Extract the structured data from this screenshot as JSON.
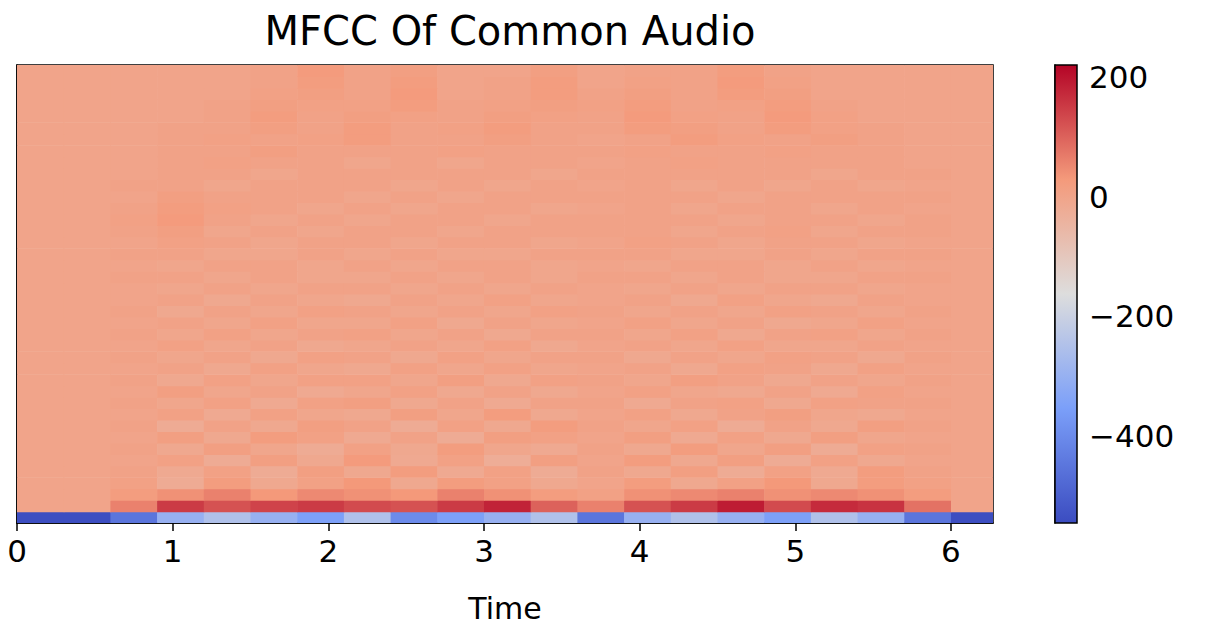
{
  "chart_data": {
    "type": "heatmap",
    "title": "MFCC Of Common Audio",
    "x_label": "Time",
    "xlim": [
      0,
      6.27
    ],
    "xticks": [
      0,
      1,
      2,
      3,
      4,
      5,
      6
    ],
    "ylim": [
      0,
      40
    ],
    "tick_labels": "x",
    "time_edges": [
      0,
      0.3,
      0.6,
      0.9,
      1.2,
      1.5,
      1.8,
      2.1,
      2.4,
      2.7,
      3.0,
      3.3,
      3.6,
      3.9,
      4.2,
      4.5,
      4.8,
      5.1,
      5.4,
      5.7,
      6.0,
      6.27
    ],
    "cells": [
      [
        -540,
        -540,
        -450,
        -300,
        -250,
        -300,
        -350,
        -250,
        -400,
        -350,
        -300,
        -250,
        -450,
        -300,
        -250,
        -300,
        -350,
        -250,
        -300,
        -450,
        -540
      ],
      [
        0,
        0,
        60,
        150,
        120,
        140,
        150,
        130,
        120,
        150,
        180,
        100,
        60,
        120,
        150,
        190,
        130,
        170,
        160,
        80,
        0
      ],
      [
        0,
        0,
        20,
        40,
        60,
        30,
        50,
        40,
        30,
        60,
        40,
        20,
        10,
        40,
        50,
        60,
        40,
        50,
        40,
        20,
        0
      ],
      [
        0,
        0,
        10,
        -20,
        20,
        -10,
        10,
        30,
        -10,
        20,
        10,
        -10,
        0,
        20,
        -10,
        10,
        30,
        -10,
        20,
        10,
        0
      ],
      [
        0,
        0,
        5,
        -15,
        10,
        -20,
        15,
        -10,
        20,
        -15,
        10,
        -20,
        5,
        -10,
        15,
        -20,
        10,
        -15,
        20,
        5,
        0
      ],
      [
        0,
        0,
        0,
        10,
        -20,
        15,
        -10,
        25,
        -15,
        10,
        -25,
        15,
        0,
        20,
        -10,
        15,
        -20,
        10,
        -10,
        0,
        0
      ],
      [
        0,
        0,
        5,
        -10,
        15,
        -5,
        -20,
        10,
        -10,
        20,
        -5,
        -15,
        5,
        -10,
        20,
        -5,
        15,
        -20,
        10,
        5,
        0
      ],
      [
        0,
        0,
        0,
        15,
        -10,
        20,
        10,
        -15,
        5,
        -20,
        15,
        10,
        0,
        15,
        -15,
        10,
        -10,
        15,
        -5,
        0,
        0
      ],
      [
        0,
        0,
        5,
        -20,
        5,
        -10,
        15,
        5,
        -20,
        10,
        -10,
        20,
        5,
        -5,
        10,
        -20,
        5,
        -10,
        15,
        5,
        0
      ],
      [
        0,
        0,
        0,
        10,
        -15,
        10,
        -5,
        -10,
        15,
        -5,
        20,
        -10,
        0,
        10,
        -10,
        5,
        15,
        -5,
        -10,
        0,
        0
      ],
      [
        0,
        0,
        5,
        -5,
        10,
        -15,
        10,
        15,
        -10,
        5,
        -15,
        5,
        5,
        -15,
        5,
        10,
        -10,
        10,
        5,
        5,
        0
      ],
      [
        0,
        0,
        0,
        15,
        -5,
        5,
        -15,
        -5,
        10,
        -10,
        5,
        -10,
        0,
        10,
        -5,
        -10,
        5,
        -15,
        10,
        0,
        0
      ],
      [
        0,
        0,
        5,
        -10,
        10,
        -5,
        10,
        10,
        -5,
        15,
        -10,
        10,
        5,
        -5,
        15,
        5,
        -10,
        5,
        -5,
        5,
        0
      ],
      [
        0,
        0,
        0,
        5,
        -10,
        10,
        -5,
        -10,
        10,
        -5,
        10,
        -5,
        0,
        5,
        -10,
        10,
        5,
        -10,
        10,
        0,
        0
      ],
      [
        0,
        0,
        5,
        -5,
        5,
        -10,
        10,
        5,
        -10,
        10,
        -5,
        5,
        5,
        -10,
        5,
        -5,
        10,
        5,
        -10,
        5,
        0
      ],
      [
        0,
        0,
        0,
        10,
        -5,
        5,
        -10,
        -5,
        5,
        -5,
        10,
        -10,
        0,
        5,
        -5,
        10,
        -5,
        -5,
        5,
        0,
        0
      ],
      [
        0,
        0,
        5,
        -5,
        10,
        -5,
        5,
        10,
        -5,
        5,
        -10,
        5,
        5,
        -5,
        10,
        -10,
        5,
        10,
        -5,
        5,
        0
      ],
      [
        0,
        0,
        0,
        5,
        -5,
        10,
        -5,
        -5,
        10,
        -10,
        5,
        -5,
        0,
        10,
        -5,
        5,
        -10,
        -5,
        10,
        0,
        0
      ],
      [
        0,
        0,
        5,
        -10,
        5,
        -5,
        10,
        5,
        -5,
        5,
        -5,
        10,
        5,
        -5,
        5,
        -5,
        10,
        5,
        -5,
        5,
        0
      ],
      [
        0,
        0,
        0,
        5,
        -10,
        5,
        -5,
        -10,
        5,
        -5,
        10,
        -5,
        0,
        5,
        -10,
        10,
        -5,
        -10,
        5,
        0,
        0
      ],
      [
        0,
        0,
        0,
        -5,
        5,
        -5,
        5,
        5,
        -5,
        5,
        -5,
        5,
        0,
        -5,
        5,
        -5,
        5,
        5,
        -5,
        0,
        0
      ],
      [
        0,
        0,
        5,
        5,
        -5,
        5,
        -5,
        -5,
        5,
        -5,
        5,
        -5,
        5,
        5,
        -5,
        5,
        -5,
        -5,
        5,
        5,
        0
      ],
      [
        0,
        0,
        0,
        -5,
        5,
        5,
        -5,
        5,
        -5,
        5,
        5,
        -5,
        0,
        -5,
        5,
        5,
        -5,
        5,
        -5,
        0,
        0
      ],
      [
        0,
        0,
        5,
        5,
        -5,
        -5,
        5,
        -5,
        5,
        -5,
        -5,
        5,
        5,
        5,
        -5,
        -5,
        5,
        -5,
        5,
        5,
        0
      ],
      [
        0,
        0,
        0,
        10,
        5,
        -5,
        5,
        5,
        -5,
        5,
        5,
        -5,
        0,
        10,
        5,
        -5,
        5,
        5,
        -5,
        0,
        0
      ],
      [
        0,
        0,
        5,
        15,
        -5,
        5,
        -5,
        5,
        5,
        -5,
        5,
        5,
        5,
        5,
        -5,
        5,
        10,
        -5,
        5,
        5,
        0
      ],
      [
        0,
        0,
        10,
        25,
        5,
        -5,
        5,
        -5,
        5,
        5,
        -5,
        5,
        5,
        5,
        5,
        -5,
        5,
        5,
        -5,
        5,
        0
      ],
      [
        0,
        0,
        5,
        20,
        10,
        5,
        -5,
        5,
        -5,
        5,
        5,
        -5,
        0,
        5,
        -5,
        5,
        5,
        -5,
        5,
        0,
        0
      ],
      [
        0,
        0,
        0,
        15,
        5,
        5,
        5,
        -5,
        5,
        -5,
        5,
        5,
        5,
        5,
        5,
        -5,
        5,
        5,
        5,
        5,
        0
      ],
      [
        0,
        0,
        5,
        5,
        -5,
        5,
        5,
        5,
        -5,
        5,
        -5,
        5,
        0,
        5,
        -5,
        5,
        -5,
        5,
        -5,
        0,
        0
      ],
      [
        0,
        0,
        0,
        5,
        5,
        -5,
        5,
        5,
        5,
        5,
        5,
        -5,
        5,
        5,
        5,
        5,
        5,
        -5,
        5,
        5,
        0
      ],
      [
        0,
        0,
        0,
        5,
        10,
        5,
        5,
        -5,
        5,
        -5,
        5,
        5,
        0,
        5,
        10,
        5,
        5,
        5,
        5,
        0,
        0
      ],
      [
        0,
        0,
        0,
        5,
        5,
        15,
        5,
        5,
        5,
        10,
        5,
        5,
        5,
        10,
        5,
        5,
        10,
        5,
        5,
        0,
        0
      ],
      [
        0,
        0,
        0,
        5,
        10,
        5,
        10,
        20,
        5,
        5,
        15,
        5,
        0,
        5,
        20,
        10,
        5,
        15,
        5,
        0,
        0
      ],
      [
        0,
        0,
        0,
        5,
        5,
        15,
        5,
        20,
        5,
        10,
        20,
        5,
        5,
        20,
        15,
        5,
        20,
        10,
        5,
        0,
        0
      ],
      [
        0,
        0,
        0,
        0,
        5,
        20,
        5,
        15,
        10,
        5,
        15,
        10,
        5,
        25,
        10,
        5,
        25,
        10,
        0,
        0,
        0
      ],
      [
        0,
        0,
        0,
        0,
        5,
        15,
        10,
        10,
        20,
        5,
        10,
        15,
        10,
        20,
        5,
        10,
        20,
        5,
        0,
        0,
        0
      ],
      [
        0,
        0,
        0,
        0,
        0,
        10,
        15,
        5,
        25,
        0,
        5,
        20,
        5,
        15,
        5,
        20,
        15,
        0,
        0,
        0,
        0
      ],
      [
        0,
        0,
        0,
        0,
        0,
        5,
        20,
        5,
        20,
        0,
        5,
        20,
        0,
        10,
        5,
        25,
        10,
        0,
        0,
        0,
        0
      ],
      [
        0,
        0,
        0,
        0,
        0,
        5,
        25,
        5,
        15,
        0,
        0,
        15,
        0,
        5,
        5,
        20,
        5,
        0,
        0,
        0,
        0
      ]
    ],
    "colorbar": {
      "range": [
        -545,
        220
      ],
      "ticks": [
        {
          "value": -400,
          "label": "−400"
        },
        {
          "value": -200,
          "label": "−200"
        },
        0,
        200
      ]
    }
  }
}
